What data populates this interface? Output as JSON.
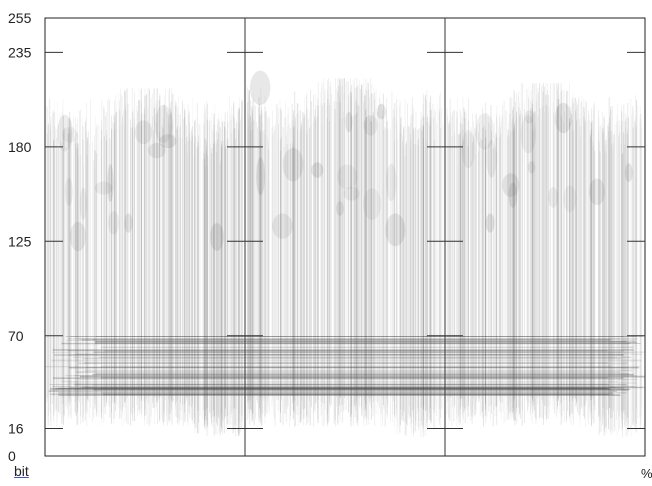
{
  "chart_data": {
    "type": "scatter",
    "title": "",
    "xlabel": "bit",
    "x_end_label": "%",
    "ylim": [
      0,
      255
    ],
    "y_ticks": [
      255,
      235,
      180,
      125,
      70,
      16,
      0
    ],
    "segments": 3,
    "dark_band": [
      35,
      70
    ],
    "trace_peaks": [
      210,
      216,
      213
    ],
    "grid": true,
    "trace_color": "#3a3a3a"
  }
}
